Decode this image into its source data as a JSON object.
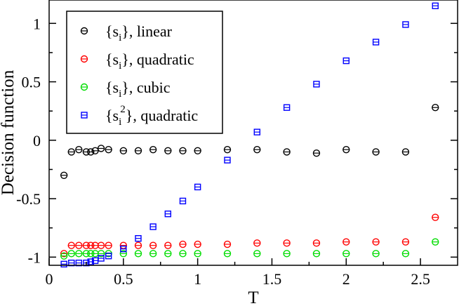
{
  "chart_data": {
    "type": "scatter",
    "title": "",
    "xlabel": "T",
    "ylabel": "Decision function",
    "xlim": [
      0,
      2.75
    ],
    "ylim": [
      -1.07,
      1.2
    ],
    "xticks": [
      0,
      0.5,
      1,
      1.5,
      2,
      2.5
    ],
    "xtick_labels": [
      "0",
      "0.5",
      "1",
      "1.5",
      "2",
      "2.5"
    ],
    "yticks": [
      -1,
      -0.5,
      0,
      0.5,
      1
    ],
    "ytick_labels": [
      "-1",
      "-0.5",
      "0",
      "0.5",
      "1"
    ],
    "legend_position": "top-left",
    "series": [
      {
        "name": "linear",
        "legend_prefix": "{s",
        "legend_sub": "i",
        "legend_sup": "",
        "legend_suffix": "}, linear",
        "color": "#000000",
        "marker": "circle",
        "x": [
          0.1,
          0.15,
          0.2,
          0.25,
          0.28,
          0.31,
          0.35,
          0.4,
          0.5,
          0.6,
          0.7,
          0.8,
          0.9,
          1.0,
          1.2,
          1.4,
          1.6,
          1.8,
          2.0,
          2.2,
          2.4,
          2.6
        ],
        "y": [
          -0.3,
          -0.1,
          -0.08,
          -0.1,
          -0.1,
          -0.09,
          -0.07,
          -0.08,
          -0.09,
          -0.09,
          -0.08,
          -0.09,
          -0.09,
          -0.09,
          -0.08,
          -0.08,
          -0.1,
          -0.11,
          -0.08,
          -0.1,
          -0.1,
          0.28
        ]
      },
      {
        "name": "quadratic",
        "legend_prefix": "{s",
        "legend_sub": "i",
        "legend_sup": "",
        "legend_suffix": "}, quadratic",
        "color": "#ff0000",
        "marker": "circle",
        "x": [
          0.1,
          0.15,
          0.2,
          0.25,
          0.28,
          0.31,
          0.35,
          0.4,
          0.5,
          0.6,
          0.7,
          0.8,
          0.9,
          1.0,
          1.2,
          1.4,
          1.6,
          1.8,
          2.0,
          2.2,
          2.4,
          2.6
        ],
        "y": [
          -0.97,
          -0.9,
          -0.9,
          -0.9,
          -0.9,
          -0.9,
          -0.9,
          -0.9,
          -0.9,
          -0.9,
          -0.9,
          -0.9,
          -0.89,
          -0.89,
          -0.89,
          -0.88,
          -0.88,
          -0.88,
          -0.87,
          -0.87,
          -0.87,
          -0.66
        ]
      },
      {
        "name": "cubic",
        "legend_prefix": "{s",
        "legend_sub": "i",
        "legend_sup": "",
        "legend_suffix": "}, cubic",
        "color": "#00dd00",
        "marker": "circle",
        "x": [
          0.1,
          0.15,
          0.2,
          0.25,
          0.28,
          0.31,
          0.35,
          0.4,
          0.5,
          0.6,
          0.7,
          0.8,
          0.9,
          1.0,
          1.2,
          1.4,
          1.6,
          1.8,
          2.0,
          2.2,
          2.4,
          2.6
        ],
        "y": [
          -0.99,
          -0.97,
          -0.97,
          -0.97,
          -0.97,
          -0.97,
          -0.97,
          -0.97,
          -0.97,
          -0.97,
          -0.97,
          -0.97,
          -0.97,
          -0.97,
          -0.97,
          -0.97,
          -0.97,
          -0.97,
          -0.97,
          -0.97,
          -0.97,
          -0.87
        ]
      },
      {
        "name": "squared quadratic",
        "legend_prefix": "{s",
        "legend_sub": "i",
        "legend_sup": "2",
        "legend_suffix": "}, quadratic",
        "color": "#0000ff",
        "marker": "square",
        "x": [
          0.1,
          0.15,
          0.2,
          0.25,
          0.28,
          0.31,
          0.35,
          0.4,
          0.5,
          0.6,
          0.7,
          0.8,
          0.9,
          1.0,
          1.2,
          1.4,
          1.6,
          1.8,
          2.0,
          2.2,
          2.4,
          2.6
        ],
        "y": [
          -1.06,
          -1.05,
          -1.05,
          -1.05,
          -1.04,
          -1.03,
          -1.01,
          -0.99,
          -0.93,
          -0.84,
          -0.74,
          -0.63,
          -0.52,
          -0.4,
          -0.17,
          0.07,
          0.28,
          0.48,
          0.68,
          0.84,
          0.99,
          1.15
        ]
      }
    ]
  }
}
